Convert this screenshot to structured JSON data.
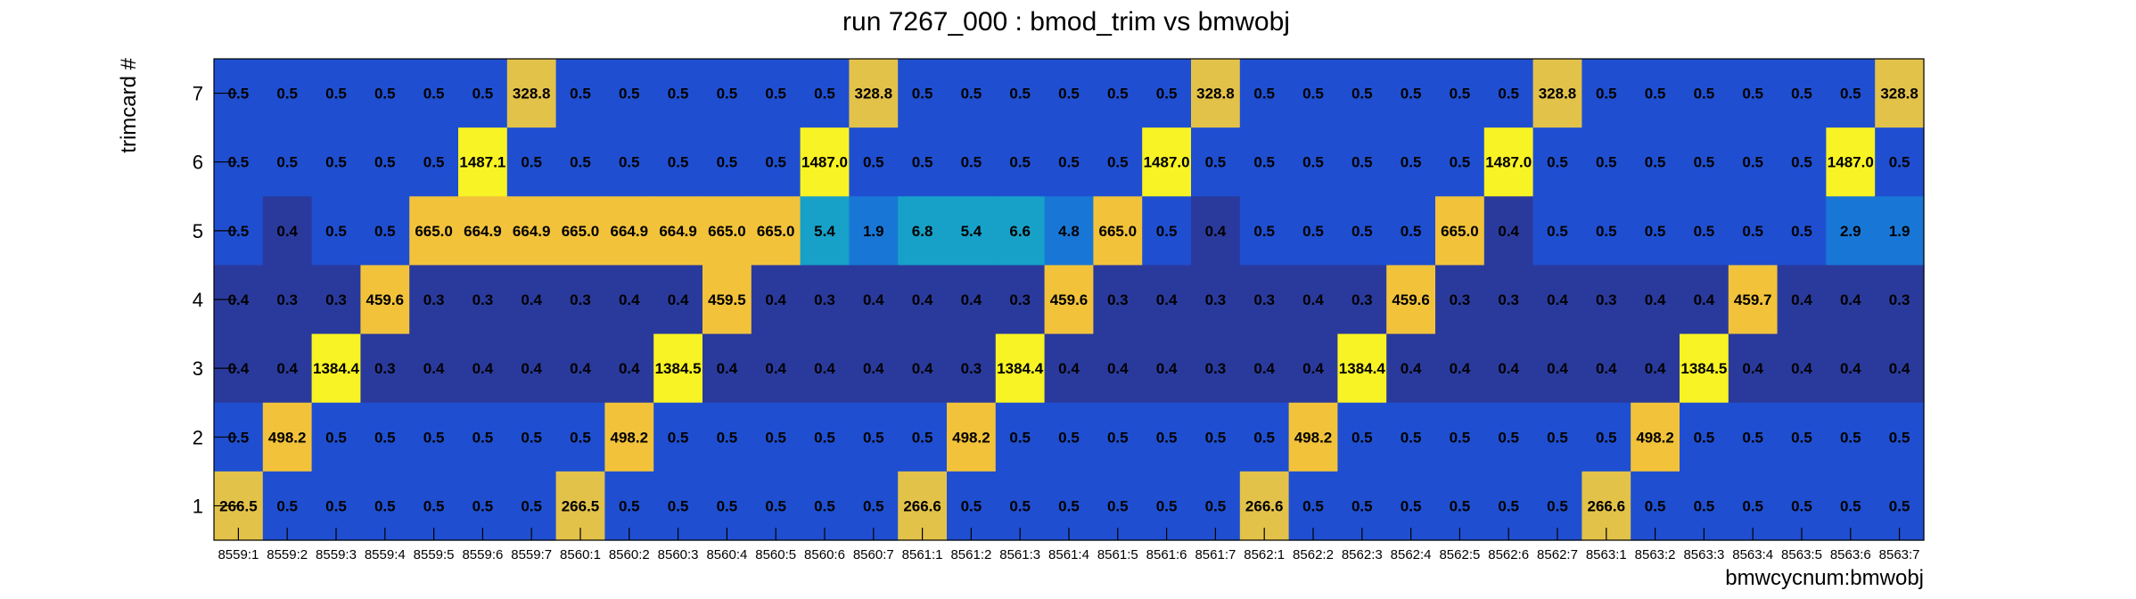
{
  "chart_data": {
    "type": "heatmap",
    "title": "run 7267_000 : bmod_trim vs bmwobj",
    "xlabel": "bmwcycnum:bmwobj",
    "ylabel": "trimcard #",
    "x_categories": [
      "8559:1",
      "8559:2",
      "8559:3",
      "8559:4",
      "8559:5",
      "8559:6",
      "8559:7",
      "8560:1",
      "8560:2",
      "8560:3",
      "8560:4",
      "8560:5",
      "8560:6",
      "8560:7",
      "8561:1",
      "8561:2",
      "8561:3",
      "8561:4",
      "8561:5",
      "8561:6",
      "8561:7",
      "8562:1",
      "8562:2",
      "8562:3",
      "8562:4",
      "8562:5",
      "8562:6",
      "8562:7",
      "8563:1",
      "8563:2",
      "8563:3",
      "8563:4",
      "8563:5",
      "8563:6",
      "8563:7"
    ],
    "y_categories": [
      "1",
      "2",
      "3",
      "4",
      "5",
      "6",
      "7"
    ],
    "rows": [
      {
        "y": "7",
        "values": [
          "0.5",
          "0.5",
          "0.5",
          "0.5",
          "0.5",
          "0.5",
          "328.8",
          "0.5",
          "0.5",
          "0.5",
          "0.5",
          "0.5",
          "0.5",
          "328.8",
          "0.5",
          "0.5",
          "0.5",
          "0.5",
          "0.5",
          "0.5",
          "328.8",
          "0.5",
          "0.5",
          "0.5",
          "0.5",
          "0.5",
          "0.5",
          "328.8",
          "0.5",
          "0.5",
          "0.5",
          "0.5",
          "0.5",
          "0.5",
          "328.8"
        ]
      },
      {
        "y": "6",
        "values": [
          "0.5",
          "0.5",
          "0.5",
          "0.5",
          "0.5",
          "1487.1",
          "0.5",
          "0.5",
          "0.5",
          "0.5",
          "0.5",
          "0.5",
          "1487.0",
          "0.5",
          "0.5",
          "0.5",
          "0.5",
          "0.5",
          "0.5",
          "1487.0",
          "0.5",
          "0.5",
          "0.5",
          "0.5",
          "0.5",
          "0.5",
          "1487.0",
          "0.5",
          "0.5",
          "0.5",
          "0.5",
          "0.5",
          "0.5",
          "1487.0",
          "0.5"
        ]
      },
      {
        "y": "5",
        "values": [
          "0.5",
          "0.4",
          "0.5",
          "0.5",
          "665.0",
          "664.9",
          "664.9",
          "665.0",
          "664.9",
          "664.9",
          "665.0",
          "665.0",
          "5.4",
          "1.9",
          "6.8",
          "5.4",
          "6.6",
          "4.8",
          "665.0",
          "0.5",
          "0.4",
          "0.5",
          "0.5",
          "0.5",
          "0.5",
          "665.0",
          "0.4",
          "0.5",
          "0.5",
          "0.5",
          "0.5",
          "0.5",
          "0.5",
          "2.9",
          "1.9"
        ]
      },
      {
        "y": "4",
        "values": [
          "0.4",
          "0.3",
          "0.3",
          "459.6",
          "0.3",
          "0.3",
          "0.4",
          "0.3",
          "0.4",
          "0.4",
          "459.5",
          "0.4",
          "0.3",
          "0.4",
          "0.4",
          "0.4",
          "0.3",
          "459.6",
          "0.3",
          "0.4",
          "0.3",
          "0.3",
          "0.4",
          "0.3",
          "459.6",
          "0.3",
          "0.3",
          "0.4",
          "0.3",
          "0.4",
          "0.4",
          "459.7",
          "0.4",
          "0.4",
          "0.3"
        ]
      },
      {
        "y": "3",
        "values": [
          "0.4",
          "0.4",
          "1384.4",
          "0.3",
          "0.4",
          "0.4",
          "0.4",
          "0.4",
          "0.4",
          "1384.5",
          "0.4",
          "0.4",
          "0.4",
          "0.4",
          "0.4",
          "0.3",
          "1384.4",
          "0.4",
          "0.4",
          "0.4",
          "0.3",
          "0.4",
          "0.4",
          "1384.4",
          "0.4",
          "0.4",
          "0.4",
          "0.4",
          "0.4",
          "0.4",
          "1384.5",
          "0.4",
          "0.4",
          "0.4",
          "0.4"
        ]
      },
      {
        "y": "2",
        "values": [
          "0.5",
          "498.2",
          "0.5",
          "0.5",
          "0.5",
          "0.5",
          "0.5",
          "0.5",
          "498.2",
          "0.5",
          "0.5",
          "0.5",
          "0.5",
          "0.5",
          "0.5",
          "498.2",
          "0.5",
          "0.5",
          "0.5",
          "0.5",
          "0.5",
          "0.5",
          "498.2",
          "0.5",
          "0.5",
          "0.5",
          "0.5",
          "0.5",
          "0.5",
          "498.2",
          "0.5",
          "0.5",
          "0.5",
          "0.5",
          "0.5"
        ]
      },
      {
        "y": "1",
        "values": [
          "266.5",
          "0.5",
          "0.5",
          "0.5",
          "0.5",
          "0.5",
          "0.5",
          "266.5",
          "0.5",
          "0.5",
          "0.5",
          "0.5",
          "0.5",
          "0.5",
          "266.6",
          "0.5",
          "0.5",
          "0.5",
          "0.5",
          "0.5",
          "0.5",
          "266.6",
          "0.5",
          "0.5",
          "0.5",
          "0.5",
          "0.5",
          "0.5",
          "266.6",
          "0.5",
          "0.5",
          "0.5",
          "0.5",
          "0.5",
          "0.5"
        ]
      }
    ],
    "palette": [
      "#2a3a9c",
      "#1f4fd0",
      "#1877d6",
      "#17a1c8",
      "#e3c24a",
      "#f2c33a",
      "#f8f324"
    ],
    "legend": "none",
    "grid": false
  }
}
